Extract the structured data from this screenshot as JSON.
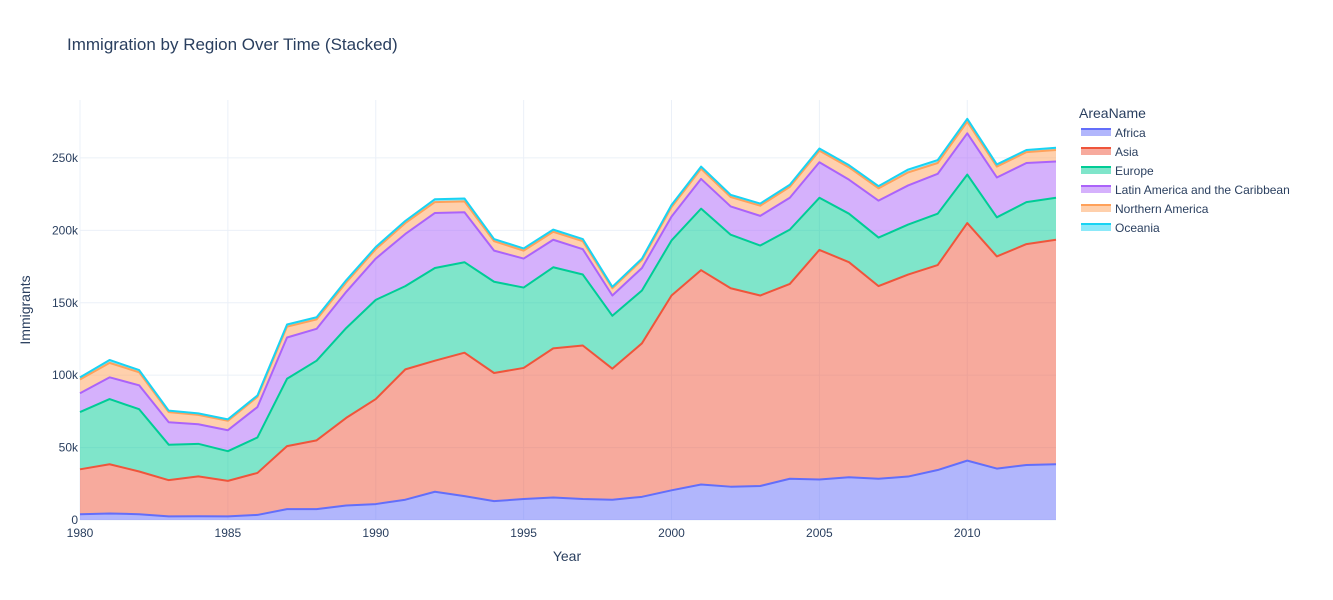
{
  "chart_data": {
    "type": "area",
    "stacked": true,
    "title": "Immigration by Region Over Time (Stacked)",
    "xlabel": "Year",
    "ylabel": "Immigrants",
    "legend_title": "AreaName",
    "legend_position": "right",
    "xlim": [
      1980,
      2013
    ],
    "ylim": [
      0,
      290000
    ],
    "x_ticks": [
      1980,
      1985,
      1990,
      1995,
      2000,
      2005,
      2010
    ],
    "x_tick_labels": [
      "1980",
      "1985",
      "1990",
      "1995",
      "2000",
      "2005",
      "2010"
    ],
    "y_ticks": [
      0,
      50000,
      100000,
      150000,
      200000,
      250000
    ],
    "y_tick_labels": [
      "0",
      "50k",
      "100k",
      "150k",
      "200k",
      "250k"
    ],
    "grid": true,
    "x": [
      1980,
      1981,
      1982,
      1983,
      1984,
      1985,
      1986,
      1987,
      1988,
      1989,
      1990,
      1991,
      1992,
      1993,
      1994,
      1995,
      1996,
      1997,
      1998,
      1999,
      2000,
      2001,
      2002,
      2003,
      2004,
      2005,
      2006,
      2007,
      2008,
      2009,
      2010,
      2011,
      2012,
      2013
    ],
    "series": [
      {
        "name": "Africa",
        "color": "#636efa",
        "values": [
          4000,
          4500,
          4000,
          2500,
          2600,
          2500,
          3500,
          7500,
          7500,
          10000,
          11000,
          14000,
          19500,
          16500,
          13000,
          14500,
          15500,
          14500,
          14000,
          16000,
          20500,
          24500,
          23000,
          23500,
          28500,
          28000,
          29500,
          28500,
          30000,
          34500,
          41000,
          35500,
          38000,
          38500
        ]
      },
      {
        "name": "Asia",
        "color": "#ef553b",
        "values": [
          31000,
          34000,
          29500,
          25000,
          27500,
          24500,
          29000,
          43500,
          47500,
          60500,
          72500,
          90000,
          90500,
          99000,
          88500,
          90500,
          103000,
          106000,
          90500,
          106000,
          134500,
          148000,
          137000,
          131500,
          134500,
          158500,
          148500,
          133000,
          139500,
          141500,
          164000,
          146500,
          152500,
          155000
        ]
      },
      {
        "name": "Europe",
        "color": "#00cc96",
        "values": [
          39500,
          45000,
          43000,
          24500,
          22500,
          20500,
          24500,
          46500,
          55000,
          62000,
          68500,
          57500,
          64000,
          62500,
          63000,
          55500,
          56000,
          49000,
          36500,
          36500,
          38000,
          42500,
          37000,
          34500,
          37500,
          36000,
          33500,
          33500,
          34500,
          35500,
          33500,
          27000,
          29000,
          29000
        ]
      },
      {
        "name": "Latin America and the Caribbean",
        "color": "#ab63fa",
        "values": [
          13000,
          15000,
          16500,
          15500,
          13500,
          14500,
          21000,
          28500,
          22000,
          25000,
          28500,
          36000,
          38000,
          34500,
          21500,
          20000,
          19000,
          17500,
          14000,
          15500,
          16500,
          20500,
          19500,
          20500,
          22000,
          24500,
          23500,
          25500,
          27000,
          27500,
          28500,
          27500,
          27000,
          25000
        ]
      },
      {
        "name": "Northern America",
        "color": "#ffa15a",
        "values": [
          9500,
          10000,
          9000,
          7000,
          6500,
          6500,
          7000,
          7500,
          6500,
          6500,
          6500,
          7500,
          7500,
          7500,
          6500,
          5500,
          5500,
          5500,
          5000,
          5500,
          6500,
          7000,
          6500,
          7000,
          7500,
          8000,
          8500,
          8500,
          9000,
          7500,
          8000,
          7500,
          7500,
          8000
        ]
      },
      {
        "name": "Oceania",
        "color": "#19d3f3",
        "values": [
          1500,
          2000,
          1500,
          1000,
          1000,
          1000,
          1000,
          1500,
          1500,
          1500,
          1500,
          1500,
          2000,
          2000,
          1500,
          1500,
          1500,
          1500,
          1000,
          1000,
          1500,
          1500,
          1500,
          1500,
          1500,
          1500,
          1500,
          1500,
          2000,
          2000,
          2000,
          1500,
          1500,
          1500
        ]
      }
    ]
  }
}
